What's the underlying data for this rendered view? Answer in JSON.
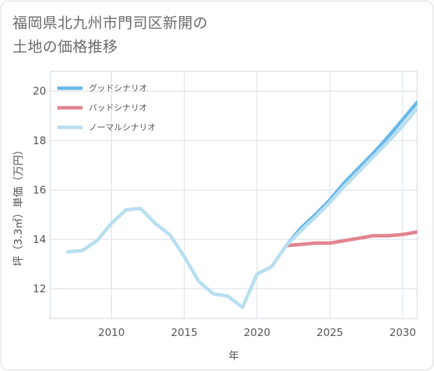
{
  "title": {
    "line1": "福岡県北九州市門司区新開の",
    "line2": "土地の価格推移"
  },
  "chart_data": {
    "type": "line",
    "xlabel": "年",
    "ylabel": "坪（3.3㎡）単価（万円）",
    "xlim": [
      2005.8,
      2031
    ],
    "ylim": [
      10.8,
      20.8
    ],
    "xticks": [
      2010,
      2015,
      2020,
      2025,
      2030
    ],
    "yticks": [
      12,
      14,
      16,
      18,
      20
    ],
    "xtick_labels": [
      "2010",
      "2015",
      "2020",
      "2025",
      "2030"
    ],
    "ytick_labels": [
      "12",
      "14",
      "16",
      "18",
      "20"
    ],
    "grid": true,
    "legend_position": "top-left",
    "series": [
      {
        "name": "グッドシナリオ",
        "color": "#6bb8e8",
        "x": [
          2022,
          2023,
          2024,
          2025,
          2026,
          2027,
          2028,
          2029,
          2030,
          2031
        ],
        "values": [
          13.75,
          14.45,
          15.0,
          15.6,
          16.3,
          16.9,
          17.5,
          18.15,
          18.85,
          19.55
        ]
      },
      {
        "name": "バッドシナリオ",
        "color": "#e0858f",
        "x": [
          2022,
          2023,
          2024,
          2025,
          2026,
          2027,
          2028,
          2029,
          2030,
          2031
        ],
        "values": [
          13.75,
          13.8,
          13.85,
          13.85,
          13.95,
          14.05,
          14.15,
          14.15,
          14.2,
          14.3
        ]
      },
      {
        "name": "ノーマルシナリオ",
        "color": "#b8dff0",
        "x": [
          2007,
          2008,
          2009,
          2010,
          2011,
          2012,
          2013,
          2014,
          2015,
          2016,
          2017,
          2018,
          2019,
          2020,
          2021,
          2022,
          2023,
          2024,
          2025,
          2026,
          2027,
          2028,
          2029,
          2030,
          2031
        ],
        "values": [
          13.5,
          13.55,
          13.95,
          14.65,
          15.2,
          15.25,
          14.65,
          14.2,
          13.3,
          12.3,
          11.8,
          11.7,
          11.25,
          12.6,
          12.9,
          13.75,
          14.35,
          14.9,
          15.5,
          16.15,
          16.75,
          17.35,
          17.95,
          18.6,
          19.3
        ]
      }
    ]
  }
}
